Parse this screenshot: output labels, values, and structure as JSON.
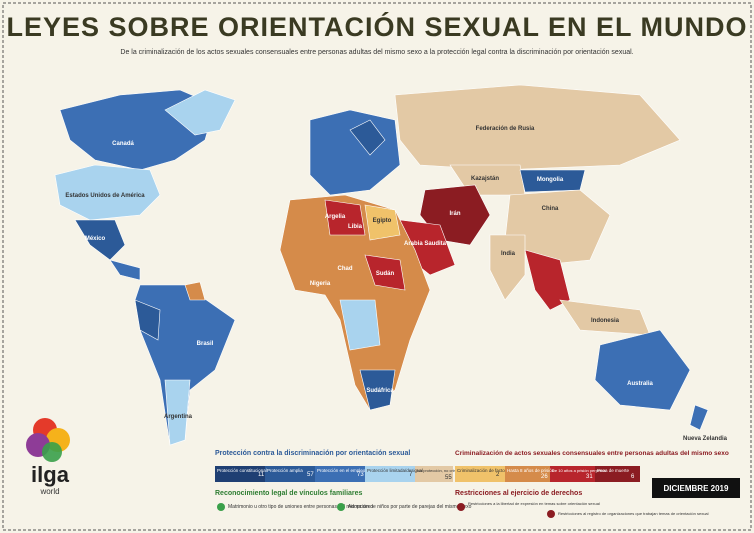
{
  "header": {
    "title": "LEYES SOBRE ORIENTACIÓN SEXUAL EN EL MUNDO",
    "subtitle": "De la criminalización de los actos sexuales consensuales entre personas adultas del mismo sexo a la protección legal contra la discriminación por orientación sexual."
  },
  "countries": [
    "Canadá",
    "Estados Unidos de América",
    "México",
    "Brasil",
    "Argentina",
    "Federación de Rusia",
    "Kazajstán",
    "Mongolia",
    "China",
    "India",
    "Indonesia",
    "Australia",
    "Nueva Zelandia",
    "Chad",
    "Nigeria",
    "Sudán",
    "Irán",
    "Arabia Saudita",
    "Sudáfrica",
    "Argelia",
    "Libia",
    "Egipto"
  ],
  "legend": {
    "protection": {
      "title": "Protección contra la discriminación por orientación sexual",
      "items": [
        {
          "label": "Protección constitucional",
          "count": 11
        },
        {
          "label": "Protección amplia",
          "count": 57
        },
        {
          "label": "Protección en el empleo",
          "count": 73
        },
        {
          "label": "Protección limitada/desigual",
          "count": 7
        }
      ]
    },
    "neutral": {
      "label": "No protección, no criminalización",
      "count": 55
    },
    "criminalization": {
      "title": "Criminalización de actos sexuales consensuales entre personas adultas del mismo sexo",
      "items": [
        {
          "label": "Criminalización de facto",
          "count": 2
        },
        {
          "label": "Hasta 8 años de prisión",
          "count": 26
        },
        {
          "label": "De 10 años a prisión perpetua",
          "count": 31
        },
        {
          "label": "Pena de muerte",
          "count": 6
        }
      ]
    },
    "family": {
      "title": "Reconocimiento legal de vínculos familiares",
      "items": [
        "Matrimonio u otro tipo de uniones entre personas del mismo sexo",
        "Adopción de niños por parte de parejas del mismo sexo"
      ]
    },
    "restrictions": {
      "title": "Restricciones al ejercicio de derechos",
      "items": [
        "Restricciones a la libertad de expresión en temas sobre orientación sexual",
        "Restricciones al registro de organizaciones que trabajan temas de orientación sexual"
      ]
    }
  },
  "date": "DICIEMBRE 2019",
  "logo": {
    "name": "ilga",
    "sub": "world"
  }
}
